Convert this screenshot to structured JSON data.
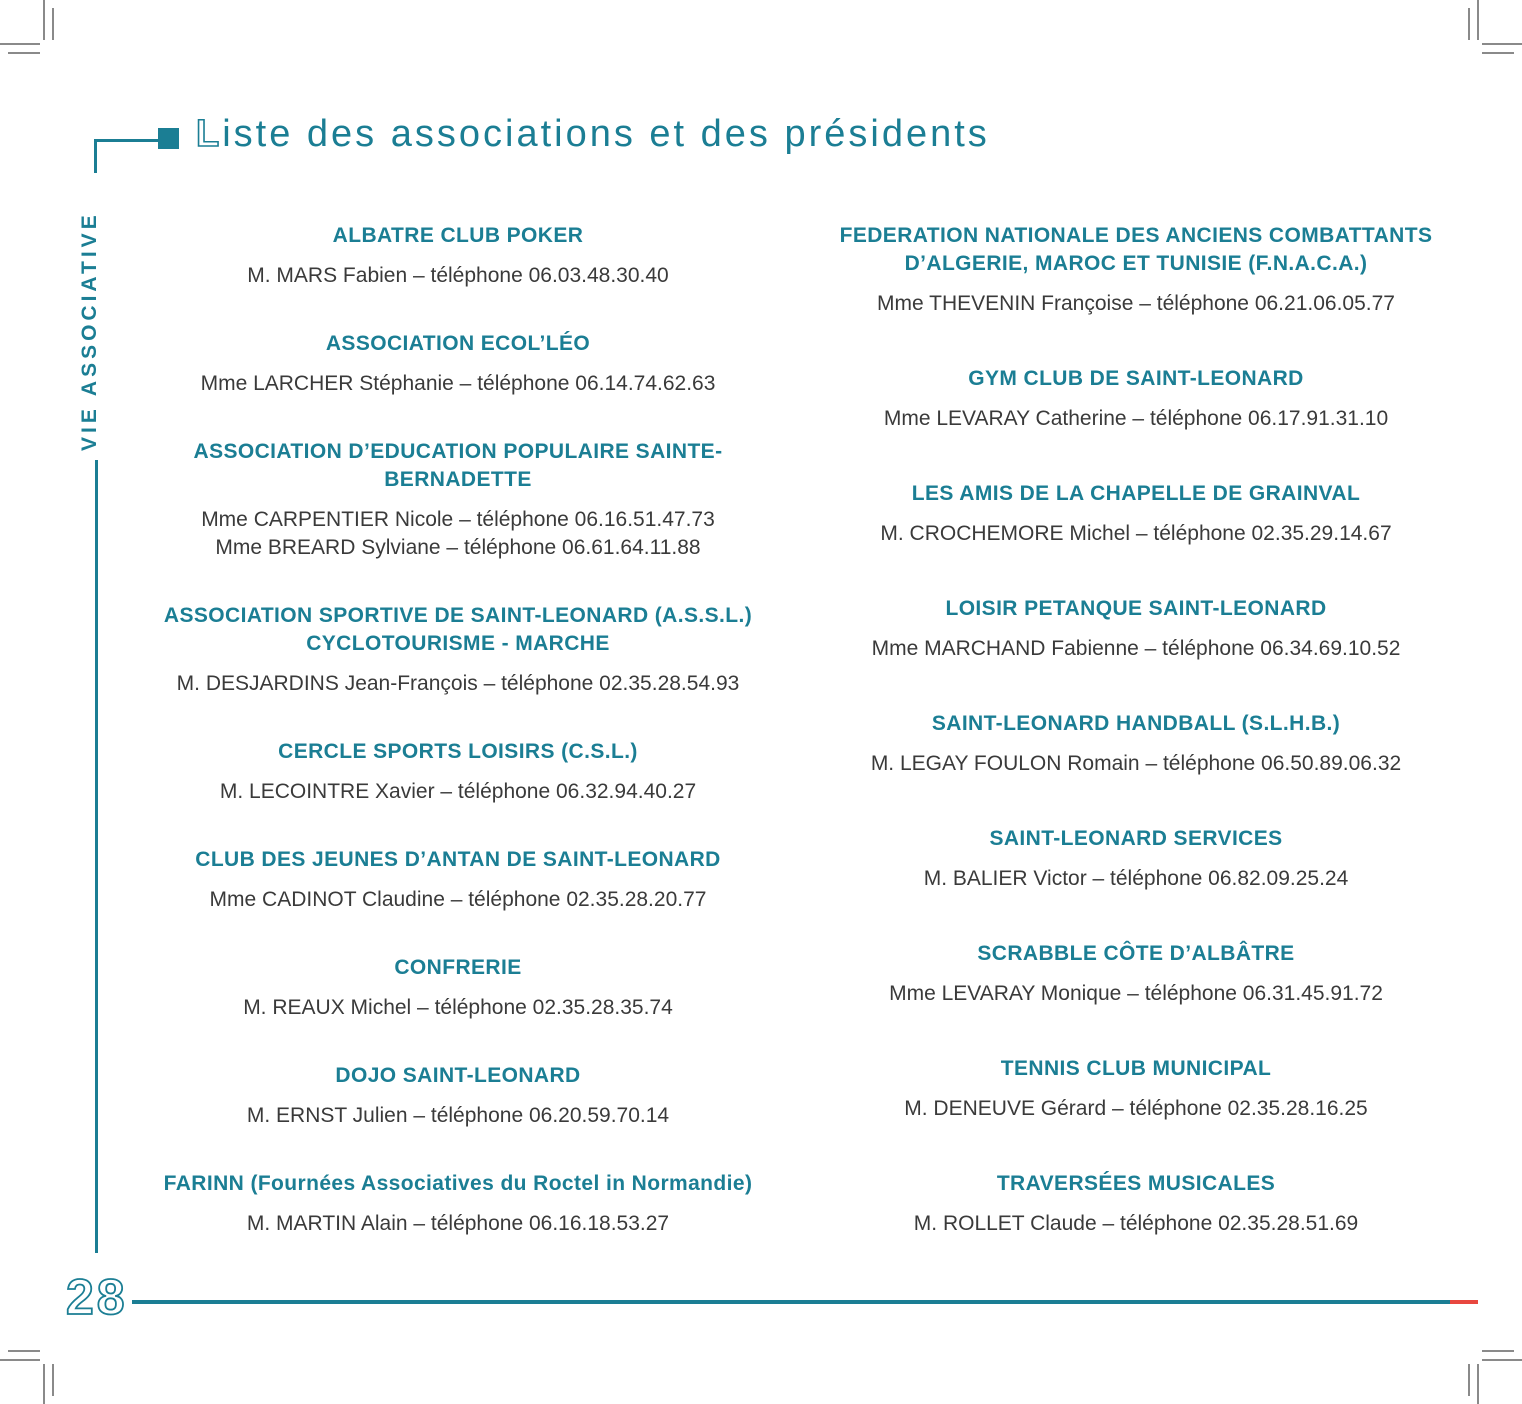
{
  "page": {
    "title_initial": "L",
    "title_rest": "iste des associations et des présidents",
    "sidebar_label": "VIE ASSOCIATIVE",
    "page_number": "28"
  },
  "colors": {
    "teal": "#1b7e94",
    "body_text": "#3a3a3a",
    "accent_red": "#e8473f",
    "crop_mark": "#8a8a8a"
  },
  "associations": {
    "left": [
      {
        "name": "ALBATRE CLUB POKER",
        "contacts": [
          "M. MARS Fabien – téléphone 06.03.48.30.40"
        ]
      },
      {
        "name": "ASSOCIATION ECOL’LÉO",
        "contacts": [
          "Mme LARCHER Stéphanie – téléphone 06.14.74.62.63"
        ]
      },
      {
        "name": "ASSOCIATION D’EDUCATION POPULAIRE SAINTE-BERNADETTE",
        "contacts": [
          "Mme CARPENTIER Nicole – téléphone 06.16.51.47.73",
          "Mme BREARD Sylviane – téléphone 06.61.64.11.88"
        ]
      },
      {
        "name": "ASSOCIATION SPORTIVE DE SAINT-LEONARD (A.S.S.L.) CYCLOTOURISME - MARCHE",
        "contacts": [
          "M. DESJARDINS Jean-François – téléphone 02.35.28.54.93"
        ]
      },
      {
        "name": "CERCLE SPORTS LOISIRS (C.S.L.)",
        "contacts": [
          "M. LECOINTRE Xavier – téléphone 06.32.94.40.27"
        ]
      },
      {
        "name": "CLUB DES JEUNES D’ANTAN DE SAINT-LEONARD",
        "contacts": [
          "Mme CADINOT Claudine – téléphone 02.35.28.20.77"
        ]
      },
      {
        "name": "CONFRERIE",
        "contacts": [
          "M. REAUX Michel – téléphone 02.35.28.35.74"
        ]
      },
      {
        "name": "DOJO SAINT-LEONARD",
        "contacts": [
          "M. ERNST Julien – téléphone 06.20.59.70.14"
        ]
      },
      {
        "name": "FARINN (Fournées Associatives du Roctel in Normandie)",
        "contacts": [
          "M. MARTIN Alain – téléphone 06.16.18.53.27"
        ]
      }
    ],
    "right": [
      {
        "name": "FEDERATION NATIONALE DES ANCIENS COMBATTANTS D’ALGERIE, MAROC ET TUNISIE (F.N.A.C.A.)",
        "contacts": [
          "Mme THEVENIN Françoise – téléphone 06.21.06.05.77"
        ]
      },
      {
        "name": "GYM CLUB DE SAINT-LEONARD",
        "contacts": [
          "Mme LEVARAY Catherine – téléphone 06.17.91.31.10"
        ]
      },
      {
        "name": "LES AMIS DE LA CHAPELLE DE GRAINVAL",
        "contacts": [
          "M. CROCHEMORE Michel – téléphone 02.35.29.14.67"
        ]
      },
      {
        "name": "LOISIR PETANQUE SAINT-LEONARD",
        "contacts": [
          "Mme MARCHAND Fabienne – téléphone 06.34.69.10.52"
        ]
      },
      {
        "name": "SAINT-LEONARD HANDBALL (S.L.H.B.)",
        "contacts": [
          "M. LEGAY FOULON Romain – téléphone 06.50.89.06.32"
        ]
      },
      {
        "name": "SAINT-LEONARD SERVICES",
        "contacts": [
          "M. BALIER Victor – téléphone 06.82.09.25.24"
        ]
      },
      {
        "name": "SCRABBLE CÔTE D’ALBÂTRE",
        "contacts": [
          "Mme LEVARAY Monique – téléphone 06.31.45.91.72"
        ]
      },
      {
        "name": "TENNIS CLUB MUNICIPAL",
        "contacts": [
          "M. DENEUVE Gérard – téléphone 02.35.28.16.25"
        ]
      },
      {
        "name": "TRAVERSÉES MUSICALES",
        "contacts": [
          "M. ROLLET Claude – téléphone 02.35.28.51.69"
        ]
      }
    ]
  }
}
